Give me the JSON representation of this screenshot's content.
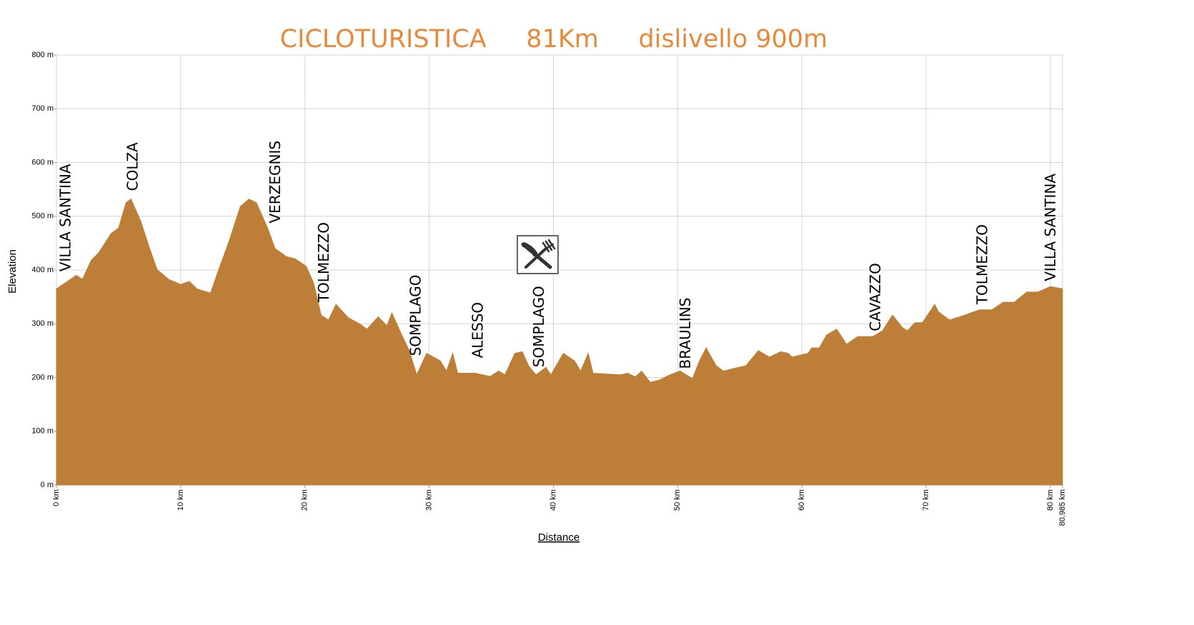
{
  "chart_data": {
    "type": "area",
    "title": "CICLOTURISTICA     81Km     dislivello 900m",
    "x_label": "Distance",
    "y_label": "Elevation",
    "color": "#bd7f38",
    "grid": true,
    "xlim": [
      0,
      80.985
    ],
    "ylim": [
      0,
      800
    ],
    "xticks": [
      {
        "value": 0,
        "label": "0 km"
      },
      {
        "value": 10,
        "label": "10 km"
      },
      {
        "value": 20,
        "label": "20 km"
      },
      {
        "value": 30,
        "label": "30 km"
      },
      {
        "value": 40,
        "label": "40 km"
      },
      {
        "value": 50,
        "label": "50 km"
      },
      {
        "value": 60,
        "label": "60 km"
      },
      {
        "value": 70,
        "label": "70 km"
      },
      {
        "value": 80,
        "label": "80 km"
      },
      {
        "value": 80.985,
        "label": "80.985 km"
      }
    ],
    "yticks": [
      {
        "value": 0,
        "label": "0 m"
      },
      {
        "value": 100,
        "label": "100 m"
      },
      {
        "value": 200,
        "label": "200 m"
      },
      {
        "value": 300,
        "label": "300 m"
      },
      {
        "value": 400,
        "label": "400 m"
      },
      {
        "value": 500,
        "label": "500 m"
      },
      {
        "value": 600,
        "label": "600 m"
      },
      {
        "value": 700,
        "label": "700 m"
      },
      {
        "value": 800,
        "label": "800 m"
      }
    ],
    "x": [
      0,
      1.6,
      2.1,
      2.8,
      3.4,
      4.4,
      5,
      5.6,
      6,
      6.8,
      7.4,
      8.1,
      9,
      10,
      10.7,
      11.3,
      12.4,
      13,
      13.9,
      14.8,
      15.5,
      16.1,
      17,
      17.6,
      18.5,
      19.2,
      20.1,
      20.7,
      21.3,
      21.9,
      22.5,
      23.5,
      24.4,
      25,
      25.9,
      26.6,
      27,
      27.8,
      28.4,
      29,
      29.8,
      30.9,
      31.4,
      31.9,
      32.3,
      33.7,
      34.9,
      35.6,
      36.1,
      36.9,
      37.5,
      38,
      38.6,
      39.4,
      39.8,
      40.8,
      41.7,
      42.2,
      42.8,
      43.2,
      45.4,
      46,
      46.6,
      47.1,
      47.8,
      48.5,
      49.4,
      50.2,
      51.2,
      51.8,
      52.3,
      53.1,
      53.7,
      54.9,
      55.5,
      56.5,
      57.4,
      58.3,
      58.9,
      59.2,
      60.5,
      60.8,
      61.4,
      62,
      62.8,
      63.6,
      64.5,
      65.7,
      66.5,
      67.3,
      68.1,
      68.5,
      69.1,
      69.7,
      70.7,
      71,
      71.9,
      73.1,
      74.3,
      75.3,
      76.2,
      77.1,
      78.1,
      79,
      80,
      80.985
    ],
    "values": [
      365,
      390,
      383,
      418,
      432,
      468,
      478,
      525,
      532,
      490,
      447,
      401,
      383,
      373,
      379,
      365,
      357,
      397,
      454,
      518,
      532,
      525,
      478,
      440,
      425,
      421,
      407,
      376,
      316,
      307,
      336,
      311,
      300,
      290,
      313,
      296,
      320,
      279,
      250,
      205,
      245,
      231,
      212,
      245,
      208,
      208,
      202,
      212,
      205,
      245,
      248,
      222,
      205,
      219,
      205,
      245,
      231,
      212,
      245,
      208,
      205,
      208,
      201,
      212,
      191,
      195,
      205,
      212,
      198,
      233,
      255,
      222,
      212,
      219,
      222,
      250,
      238,
      248,
      245,
      238,
      245,
      255,
      255,
      279,
      290,
      262,
      276,
      276,
      287,
      316,
      293,
      287,
      302,
      302,
      336,
      322,
      307,
      316,
      326,
      326,
      340,
      340,
      359,
      359,
      369,
      365
    ],
    "annotations": [
      {
        "text": "VILLA SANTINA",
        "x": 0.8,
        "y": 397
      },
      {
        "text": "COLZA",
        "x": 6.2,
        "y": 547
      },
      {
        "text": "VERZEGNIS",
        "x": 17.7,
        "y": 487
      },
      {
        "text": "TOLMEZZO",
        "x": 21.6,
        "y": 340
      },
      {
        "text": "SOMPLAGO",
        "x": 29,
        "y": 240
      },
      {
        "text": "ALESSO",
        "x": 34,
        "y": 236
      },
      {
        "text": "SOMPLAGO",
        "x": 38.9,
        "y": 219
      },
      {
        "text": "BRAULINS",
        "x": 50.7,
        "y": 216
      },
      {
        "text": "CAVAZZO",
        "x": 66,
        "y": 286
      },
      {
        "text": "TOLMEZZO",
        "x": 74.6,
        "y": 336
      },
      {
        "text": "VILLA SANTINA",
        "x": 80.1,
        "y": 379
      }
    ]
  }
}
